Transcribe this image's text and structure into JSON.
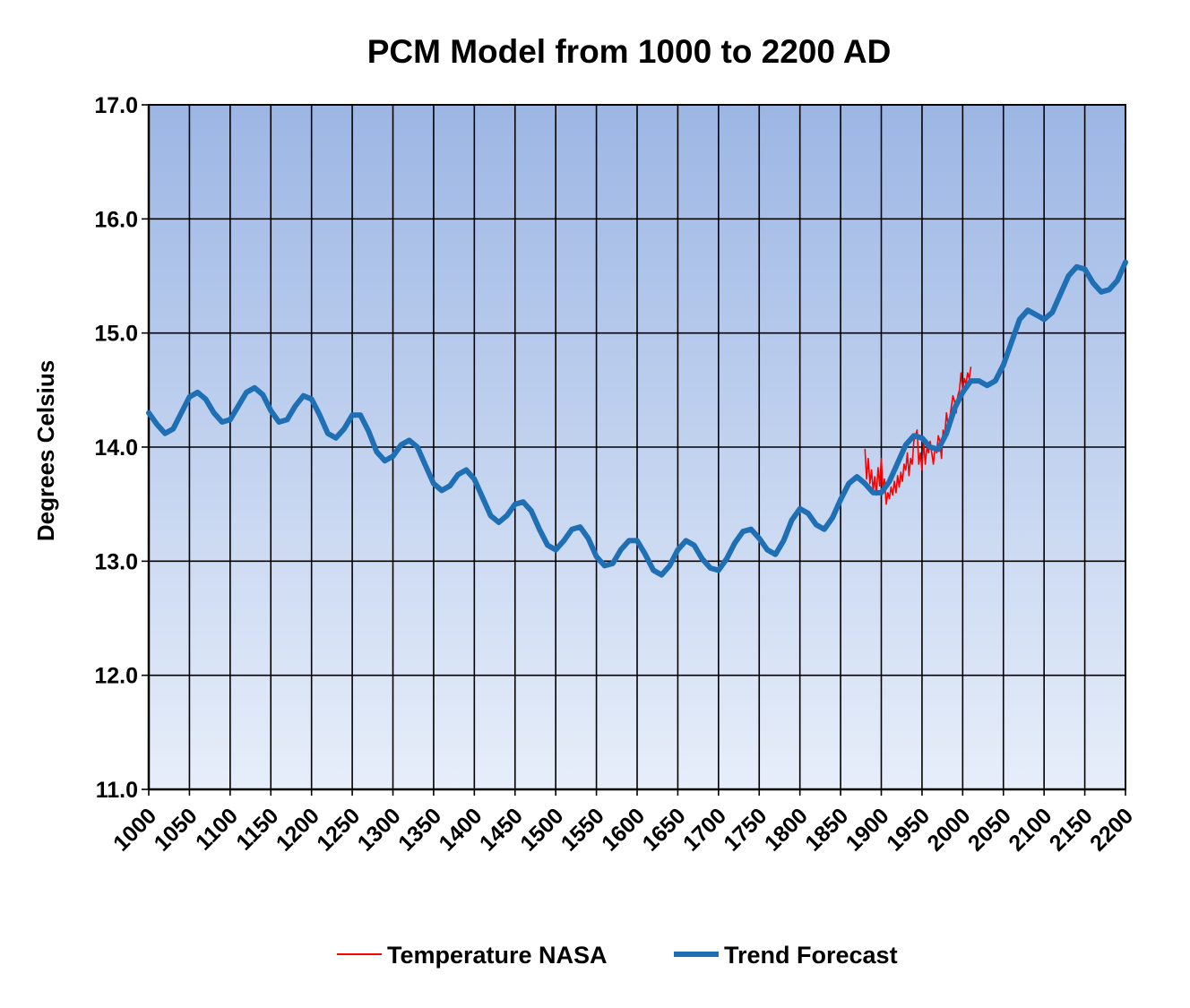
{
  "chart_data": {
    "type": "line",
    "title": "PCM Model from 1000 to 2200 AD",
    "xlabel": "",
    "ylabel": "Degrees Celsius",
    "xlim": [
      1000,
      2200
    ],
    "ylim": [
      11.0,
      17.0
    ],
    "x_ticks": [
      1000,
      1050,
      1100,
      1150,
      1200,
      1250,
      1300,
      1350,
      1400,
      1450,
      1500,
      1550,
      1600,
      1650,
      1700,
      1750,
      1800,
      1850,
      1900,
      1950,
      2000,
      2050,
      2100,
      2150,
      2200
    ],
    "y_ticks": [
      "11.0",
      "12.0",
      "13.0",
      "14.0",
      "15.0",
      "16.0",
      "17.0"
    ],
    "grid": true,
    "legend_position": "bottom",
    "series": [
      {
        "name": "Temperature NASA",
        "color": "#ff0000",
        "x": [
          1880,
          1882,
          1884,
          1886,
          1888,
          1890,
          1892,
          1894,
          1896,
          1898,
          1900,
          1902,
          1904,
          1906,
          1908,
          1910,
          1912,
          1914,
          1916,
          1918,
          1920,
          1922,
          1924,
          1926,
          1928,
          1930,
          1932,
          1934,
          1936,
          1938,
          1940,
          1942,
          1944,
          1946,
          1948,
          1950,
          1952,
          1954,
          1956,
          1958,
          1960,
          1962,
          1964,
          1966,
          1968,
          1970,
          1972,
          1974,
          1976,
          1978,
          1980,
          1982,
          1984,
          1986,
          1988,
          1990,
          1992,
          1994,
          1996,
          1998,
          2000,
          2002,
          2004,
          2006,
          2008,
          2010
        ],
        "y": [
          13.98,
          13.72,
          13.9,
          13.68,
          13.8,
          13.62,
          13.74,
          13.58,
          13.82,
          13.66,
          13.9,
          13.62,
          13.72,
          13.5,
          13.6,
          13.55,
          13.65,
          13.58,
          13.7,
          13.6,
          13.75,
          13.65,
          13.78,
          13.7,
          13.85,
          13.8,
          13.95,
          13.75,
          13.9,
          13.85,
          14.05,
          14.1,
          14.15,
          13.85,
          13.95,
          13.8,
          14.05,
          13.85,
          14.0,
          13.95,
          14.05,
          13.95,
          13.85,
          14.0,
          13.95,
          14.1,
          14.05,
          13.9,
          14.15,
          14.1,
          14.3,
          14.2,
          14.25,
          14.35,
          14.45,
          14.4,
          14.3,
          14.45,
          14.5,
          14.65,
          14.5,
          14.6,
          14.55,
          14.65,
          14.6,
          14.7
        ]
      },
      {
        "name": "Trend  Forecast",
        "color": "#1f6fb5",
        "x": [
          1000,
          1010,
          1020,
          1030,
          1040,
          1050,
          1060,
          1070,
          1080,
          1090,
          1100,
          1110,
          1120,
          1130,
          1140,
          1150,
          1160,
          1170,
          1180,
          1190,
          1200,
          1210,
          1220,
          1230,
          1240,
          1250,
          1260,
          1270,
          1280,
          1290,
          1300,
          1310,
          1320,
          1330,
          1340,
          1350,
          1360,
          1370,
          1380,
          1390,
          1400,
          1410,
          1420,
          1430,
          1440,
          1450,
          1460,
          1470,
          1480,
          1490,
          1500,
          1510,
          1520,
          1530,
          1540,
          1550,
          1560,
          1570,
          1580,
          1590,
          1600,
          1610,
          1620,
          1630,
          1640,
          1650,
          1660,
          1670,
          1680,
          1690,
          1700,
          1710,
          1720,
          1730,
          1740,
          1750,
          1760,
          1770,
          1780,
          1790,
          1800,
          1810,
          1820,
          1830,
          1840,
          1850,
          1860,
          1870,
          1880,
          1890,
          1900,
          1910,
          1920,
          1930,
          1940,
          1950,
          1960,
          1970,
          1980,
          1990,
          2000,
          2010,
          2020,
          2030,
          2040,
          2050,
          2060,
          2070,
          2080,
          2090,
          2100,
          2110,
          2120,
          2130,
          2140,
          2150,
          2160,
          2170,
          2180,
          2190,
          2200
        ],
        "y": [
          14.3,
          14.2,
          14.12,
          14.16,
          14.3,
          14.44,
          14.48,
          14.42,
          14.3,
          14.22,
          14.24,
          14.36,
          14.48,
          14.52,
          14.46,
          14.32,
          14.22,
          14.24,
          14.36,
          14.45,
          14.42,
          14.28,
          14.12,
          14.08,
          14.16,
          14.28,
          14.28,
          14.14,
          13.96,
          13.88,
          13.92,
          14.02,
          14.06,
          14.0,
          13.84,
          13.68,
          13.62,
          13.66,
          13.76,
          13.8,
          13.72,
          13.56,
          13.4,
          13.34,
          13.4,
          13.5,
          13.52,
          13.44,
          13.28,
          13.14,
          13.1,
          13.18,
          13.28,
          13.3,
          13.2,
          13.04,
          12.96,
          12.98,
          13.1,
          13.18,
          13.18,
          13.06,
          12.92,
          12.88,
          12.96,
          13.1,
          13.18,
          13.14,
          13.02,
          12.94,
          12.92,
          13.02,
          13.16,
          13.26,
          13.28,
          13.2,
          13.1,
          13.06,
          13.18,
          13.36,
          13.46,
          13.42,
          13.32,
          13.28,
          13.38,
          13.54,
          13.68,
          13.74,
          13.68,
          13.6,
          13.6,
          13.7,
          13.86,
          14.02,
          14.1,
          14.08,
          14.0,
          13.98,
          14.12,
          14.34,
          14.48,
          14.58,
          14.58,
          14.54,
          14.58,
          14.72,
          14.92,
          15.12,
          15.2,
          15.16,
          15.12,
          15.18,
          15.34,
          15.5,
          15.58,
          15.56,
          15.44,
          15.36,
          15.38,
          15.46,
          15.62
        ]
      }
    ]
  }
}
